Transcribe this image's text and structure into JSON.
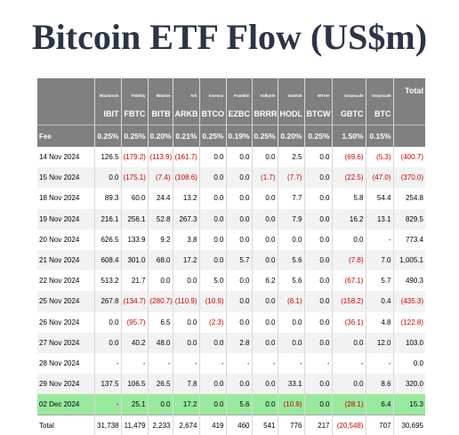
{
  "title": "Bitcoin ETF Flow (US$m)",
  "issuers": [
    "Blackrock",
    "Fidelity",
    "Bitwise",
    "Ark",
    "Invesco",
    "Franklin",
    "Valkyrie",
    "VanEck",
    "WTree",
    "Grayscale",
    "Grayscale"
  ],
  "total_header": "Total",
  "tickers": [
    "IBIT",
    "FBTC",
    "BITB",
    "ARKB",
    "BTCO",
    "EZBC",
    "BRRR",
    "HODL",
    "BTCW",
    "GBTC",
    "BTC"
  ],
  "fee_label": "Fee",
  "fees": [
    "0.25%",
    "0.25%",
    "0.20%",
    "0.21%",
    "0.25%",
    "0.19%",
    "0.25%",
    "0.20%",
    "0.25%",
    "1.50%",
    "0.15%"
  ],
  "rows": [
    {
      "date": "14 Nov 2024",
      "values": [
        "126.5",
        "(179.2)",
        "(113.9)",
        "(161.7)",
        "0.0",
        "0.0",
        "0.0",
        "2.5",
        "0.0",
        "(69.6)",
        "(5.3)",
        "(400.7)"
      ]
    },
    {
      "date": "15 Nov 2024",
      "values": [
        "0.0",
        "(175.1)",
        "(7.4)",
        "(108.6)",
        "0.0",
        "0.0",
        "(1.7)",
        "(7.7)",
        "0.0",
        "(22.5)",
        "(47.0)",
        "(370.0)"
      ]
    },
    {
      "date": "18 Nov 2024",
      "values": [
        "89.3",
        "60.0",
        "24.4",
        "13.2",
        "0.0",
        "0.0",
        "0.0",
        "7.7",
        "0.0",
        "5.8",
        "54.4",
        "254.8"
      ]
    },
    {
      "date": "19 Nov 2024",
      "values": [
        "216.1",
        "256.1",
        "52.8",
        "267.3",
        "0.0",
        "0.0",
        "0.0",
        "7.9",
        "0.0",
        "16.2",
        "13.1",
        "829.5"
      ]
    },
    {
      "date": "20 Nov 2024",
      "values": [
        "626.5",
        "133.9",
        "9.2",
        "3.8",
        "0.0",
        "0.0",
        "0.0",
        "0.0",
        "0.0",
        "0.0",
        "-",
        "773.4"
      ]
    },
    {
      "date": "21 Nov 2024",
      "values": [
        "608.4",
        "301.0",
        "68.0",
        "17.2",
        "0.0",
        "5.7",
        "0.0",
        "5.6",
        "0.0",
        "(7.8)",
        "7.0",
        "1,005.1"
      ]
    },
    {
      "date": "22 Nov 2024",
      "values": [
        "513.2",
        "21.7",
        "0.0",
        "0.0",
        "5.0",
        "0.0",
        "6.2",
        "5.6",
        "0.0",
        "(67.1)",
        "5.7",
        "490.3"
      ]
    },
    {
      "date": "25 Nov 2024",
      "values": [
        "267.8",
        "(134.7)",
        "(280.7)",
        "(110.9)",
        "(10.9)",
        "0.0",
        "0.0",
        "(8.1)",
        "0.0",
        "(158.2)",
        "0.4",
        "(435.3)"
      ]
    },
    {
      "date": "26 Nov 2024",
      "values": [
        "0.0",
        "(95.7)",
        "6.5",
        "0.0",
        "(2.3)",
        "0.0",
        "0.0",
        "0.0",
        "0.0",
        "(36.1)",
        "4.8",
        "(122.8)"
      ]
    },
    {
      "date": "27 Nov 2024",
      "values": [
        "0.0",
        "40.2",
        "48.0",
        "0.0",
        "0.0",
        "2.8",
        "0.0",
        "0.0",
        "0.0",
        "0.0",
        "12.0",
        "103.0"
      ]
    },
    {
      "date": "28 Nov 2024",
      "values": [
        "-",
        "-",
        "-",
        "-",
        "-",
        "-",
        "-",
        "-",
        "-",
        "-",
        "-",
        "0.0"
      ]
    },
    {
      "date": "29 Nov 2024",
      "values": [
        "137.5",
        "106.5",
        "26.5",
        "7.8",
        "0.0",
        "0.0",
        "0.0",
        "33.1",
        "0.0",
        "0.0",
        "8.6",
        "320.0"
      ]
    },
    {
      "date": "02 Dec 2024",
      "values": [
        "-",
        "25.1",
        "0.0",
        "17.2",
        "0.0",
        "5.6",
        "0.0",
        "(10.9)",
        "0.0",
        "(28.1)",
        "6.4",
        "15.3"
      ],
      "highlight": true
    }
  ],
  "totals": {
    "label": "Total",
    "values": [
      "31,738",
      "11,479",
      "2,233",
      "2,674",
      "419",
      "460",
      "541",
      "776",
      "217",
      "(20,548)",
      "707",
      "30,695"
    ]
  },
  "colors": {
    "header_bg": "#808080",
    "negative": "#cc0000",
    "highlight": "#99e99f",
    "title": "#2c3445"
  }
}
